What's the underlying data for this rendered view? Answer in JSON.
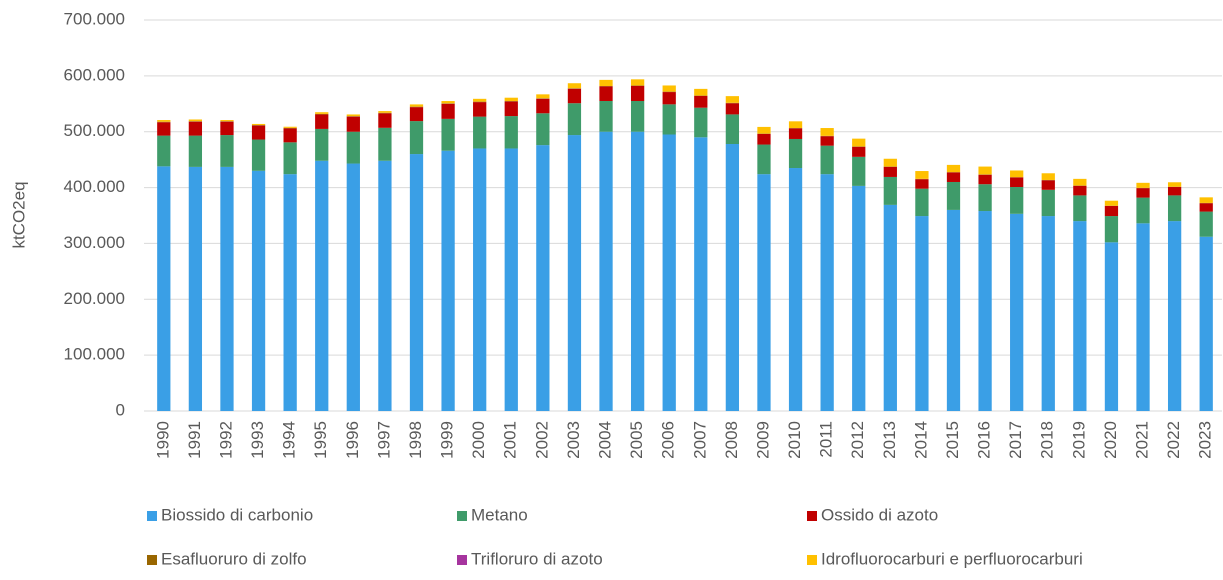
{
  "chart_data": {
    "type": "stacked_bar",
    "y_label": "ktCO2eq",
    "categories": [
      "1990",
      "1991",
      "1992",
      "1993",
      "1994",
      "1995",
      "1996",
      "1997",
      "1998",
      "1999",
      "2000",
      "2001",
      "2002",
      "2003",
      "2004",
      "2005",
      "2006",
      "2007",
      "2008",
      "2009",
      "2010",
      "2011",
      "2012",
      "2013",
      "2014",
      "2015",
      "2016",
      "2017",
      "2018",
      "2019",
      "2020",
      "2021",
      "2022",
      "2023"
    ],
    "series": [
      {
        "name": "Biossido di carbonio",
        "color": "#3a9fe6",
        "values": [
          438000,
          437000,
          437000,
          430000,
          424000,
          448000,
          443000,
          448000,
          460000,
          466000,
          470000,
          470000,
          476000,
          494000,
          500000,
          500000,
          495000,
          490000,
          478000,
          424000,
          435000,
          424000,
          403000,
          369000,
          349000,
          360000,
          358000,
          353000,
          349000,
          340000,
          302000,
          336000,
          340000,
          312000
        ]
      },
      {
        "name": "Metano",
        "color": "#3f9b6a",
        "values": [
          55000,
          56000,
          57000,
          56000,
          57000,
          57000,
          57000,
          59000,
          59000,
          57000,
          57000,
          58000,
          57000,
          57000,
          55000,
          55000,
          54000,
          53000,
          53000,
          53000,
          52000,
          51000,
          52000,
          50000,
          49000,
          50000,
          48000,
          48000,
          47000,
          46000,
          47000,
          46000,
          46000,
          45000
        ]
      },
      {
        "name": "Ossido di azoto",
        "color": "#c00000",
        "values": [
          24000,
          25000,
          24000,
          25000,
          25000,
          26000,
          27000,
          26000,
          25000,
          27000,
          26000,
          26000,
          26000,
          26000,
          26000,
          27000,
          22000,
          21000,
          20000,
          19000,
          19000,
          17000,
          18000,
          18000,
          17000,
          17000,
          17000,
          17000,
          17000,
          17000,
          18000,
          17000,
          15000,
          15000
        ]
      },
      {
        "name": "Esafluoruro di zolfo",
        "color": "#996600",
        "values": [
          800,
          800,
          800,
          800,
          800,
          800,
          800,
          800,
          800,
          800,
          800,
          800,
          800,
          700,
          700,
          700,
          700,
          600,
          600,
          500,
          500,
          500,
          500,
          500,
          500,
          500,
          500,
          500,
          500,
          500,
          400,
          400,
          400,
          400
        ]
      },
      {
        "name": "Trifloruro di azoto",
        "color": "#a6349e",
        "values": [
          100,
          100,
          100,
          100,
          100,
          100,
          100,
          100,
          100,
          100,
          100,
          100,
          100,
          100,
          100,
          100,
          100,
          100,
          100,
          100,
          100,
          100,
          100,
          100,
          100,
          100,
          100,
          100,
          100,
          100,
          100,
          100,
          100,
          100
        ]
      },
      {
        "name": "Idrofluorocarburi e perfluorocarburi",
        "color": "#ffc000",
        "values": [
          3000,
          3000,
          2000,
          2000,
          2000,
          3000,
          3000,
          3000,
          4000,
          4000,
          5000,
          6000,
          7000,
          9000,
          11000,
          11000,
          11000,
          12000,
          12000,
          12000,
          12000,
          14000,
          14000,
          14000,
          14000,
          13000,
          14000,
          12000,
          12000,
          12000,
          9000,
          9000,
          8000,
          10000
        ]
      }
    ],
    "ylim": [
      0,
      700000
    ],
    "yticks": [
      {
        "value": 0,
        "label": "0"
      },
      {
        "value": 100000,
        "label": "100.000"
      },
      {
        "value": 200000,
        "label": "200.000"
      },
      {
        "value": 300000,
        "label": "300.000"
      },
      {
        "value": 400000,
        "label": "400.000"
      },
      {
        "value": 500000,
        "label": "500.000"
      },
      {
        "value": 600000,
        "label": "600.000"
      },
      {
        "value": 700000,
        "label": "700.000"
      }
    ],
    "grid": true
  }
}
